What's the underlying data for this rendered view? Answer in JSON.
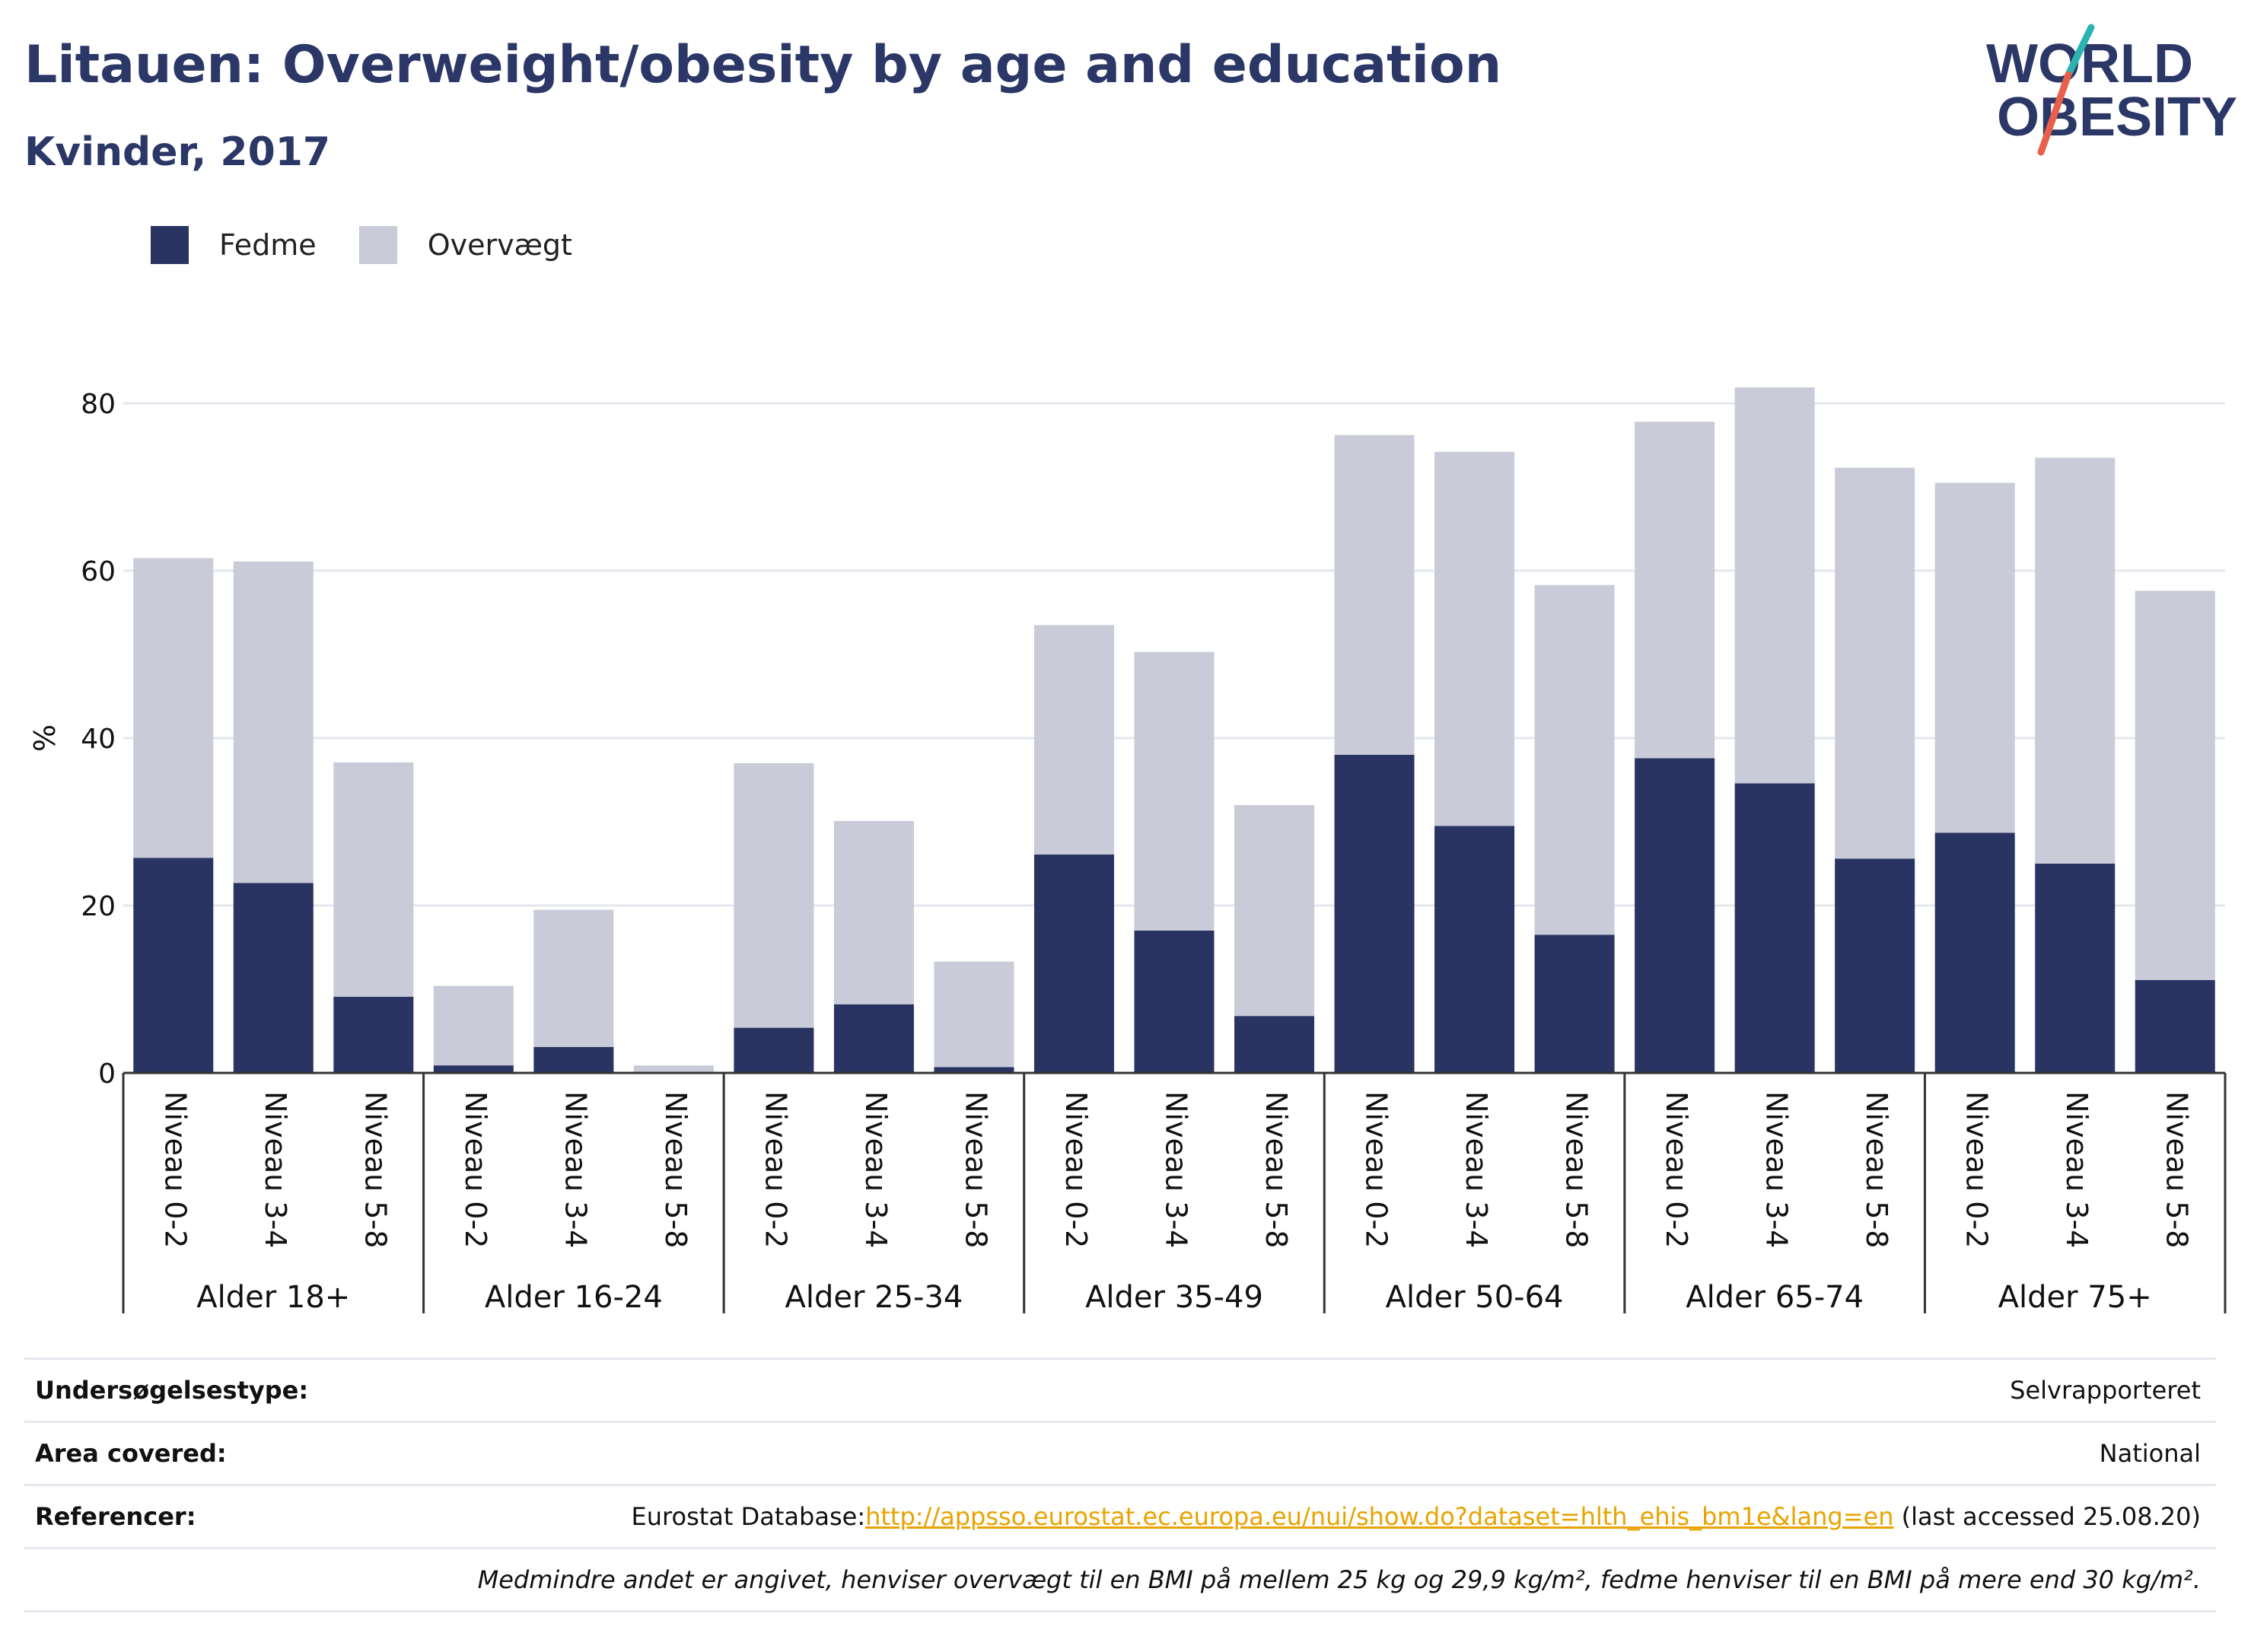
{
  "header": {
    "title": "Litauen: Overweight/obesity by age and education",
    "subtitle": "Kvinder, 2017"
  },
  "logo": {
    "line1": "WORLD",
    "line2": "OBESITY",
    "colors": {
      "text": "#2b3766",
      "slash_teal": "#2bb3b1",
      "slash_coral": "#e8604c"
    }
  },
  "legend": [
    {
      "label": "Fedme",
      "color": "#293462"
    },
    {
      "label": "Overvægt",
      "color": "#c9cbd8"
    }
  ],
  "chart_data": {
    "type": "bar",
    "stacked": true,
    "ylabel": "%",
    "xlabel": "",
    "ylim": [
      0,
      88
    ],
    "yticks": [
      0,
      20,
      40,
      60,
      80
    ],
    "grid": true,
    "legend_position": "top-left",
    "groups": [
      "Alder 18+",
      "Alder 16-24",
      "Alder 25-34",
      "Alder 35-49",
      "Alder 50-64",
      "Alder 65-74",
      "Alder 75+"
    ],
    "levels": [
      "Niveau 0-2",
      "Niveau 3-4",
      "Niveau 5-8"
    ],
    "categories": [
      "Niveau 0-2",
      "Niveau 3-4",
      "Niveau 5-8",
      "Niveau 0-2",
      "Niveau 3-4",
      "Niveau 5-8",
      "Niveau 0-2",
      "Niveau 3-4",
      "Niveau 5-8",
      "Niveau 0-2",
      "Niveau 3-4",
      "Niveau 5-8",
      "Niveau 0-2",
      "Niveau 3-4",
      "Niveau 5-8",
      "Niveau 0-2",
      "Niveau 3-4",
      "Niveau 5-8",
      "Niveau 0-2",
      "Niveau 3-4",
      "Niveau 5-8"
    ],
    "series": [
      {
        "name": "Fedme",
        "color": "#293462",
        "values": [
          25.7,
          22.7,
          9.1,
          0.9,
          3.1,
          0.0,
          5.4,
          8.2,
          0.7,
          26.1,
          17.0,
          6.8,
          38.0,
          29.5,
          16.5,
          37.6,
          34.6,
          25.6,
          28.7,
          25.0,
          11.1
        ]
      },
      {
        "name": "Overvægt",
        "color": "#c9cbd8",
        "values": [
          35.8,
          38.4,
          28.0,
          9.5,
          16.4,
          0.9,
          31.6,
          21.9,
          12.6,
          27.4,
          33.3,
          25.2,
          38.2,
          44.7,
          41.8,
          40.2,
          47.3,
          46.7,
          41.8,
          48.5,
          46.5
        ]
      }
    ]
  },
  "info": {
    "survey_type": {
      "label": "Undersøgelsestype:",
      "value": "Selvrapporteret"
    },
    "area": {
      "label": "Area covered:",
      "value": "National"
    },
    "references": {
      "label": "Referencer:",
      "prefix": "Eurostat Database:",
      "link": "http://appsso.eurostat.ec.europa.eu/nui/show.do?dataset=hlth_ehis_bm1e&lang=en",
      "suffix": " (last accessed 25.08.20)"
    },
    "note": "Medmindre andet er angivet, henviser overvægt til en BMI på mellem 25 kg og 29,9 kg/m², fedme henviser til en BMI på mere end 30 kg/m²."
  }
}
